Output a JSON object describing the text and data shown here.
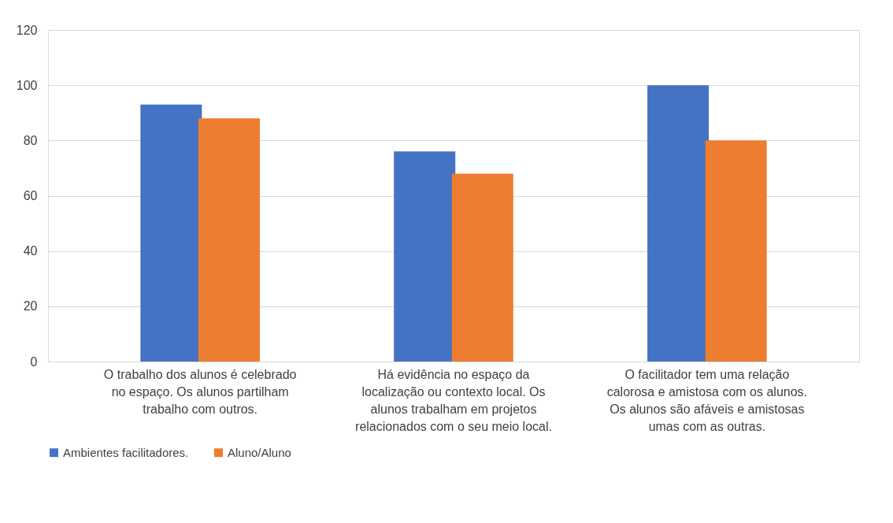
{
  "chart_data": {
    "type": "bar",
    "categories": [
      "O trabalho dos alunos é celebrado no espaço. Os alunos partilham trabalho com outros.",
      "Há evidência no espaço da localização ou contexto local. Os alunos trabalham em projetos relacionados com o seu meio local.",
      "O facilitador tem uma relação calorosa e amistosa com os alunos. Os alunos são afáveis e amistosas umas com as outras."
    ],
    "series": [
      {
        "name": "Ambientes facilitadores.",
        "color": "#4472c4",
        "values": [
          93,
          76,
          100
        ]
      },
      {
        "name": "Aluno/Aluno",
        "color": "#ed7d31",
        "values": [
          88,
          68,
          80
        ]
      }
    ],
    "ylim": [
      0,
      120
    ],
    "yticks": [
      0,
      20,
      40,
      60,
      80,
      100,
      120
    ],
    "grid": "y",
    "legend": "bottom"
  }
}
